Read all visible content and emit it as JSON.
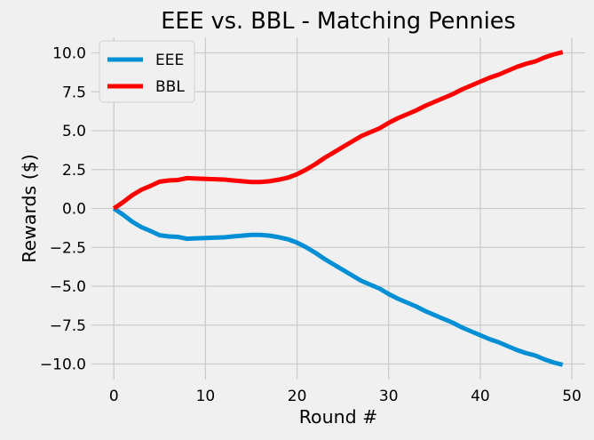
{
  "chart_data": {
    "type": "line",
    "title": "EEE vs. BBL - Matching Pennies",
    "xlabel": "Round #",
    "ylabel": "Rewards ($)",
    "xlim": [
      -2.45,
      51.45
    ],
    "ylim": [
      -11,
      11
    ],
    "xticks": [
      0,
      10,
      20,
      30,
      40,
      50
    ],
    "xtick_labels": [
      "0",
      "10",
      "20",
      "30",
      "40",
      "50"
    ],
    "yticks": [
      -10,
      -7.5,
      -5,
      -2.5,
      0,
      2.5,
      5,
      7.5,
      10
    ],
    "ytick_labels": [
      "−10.0",
      "−7.5",
      "−5.0",
      "−2.5",
      "0.0",
      "2.5",
      "5.0",
      "7.5",
      "10.0"
    ],
    "grid": true,
    "legend_position": "upper-left",
    "x": [
      0,
      1,
      2,
      3,
      4,
      5,
      6,
      7,
      8,
      9,
      10,
      11,
      12,
      13,
      14,
      15,
      16,
      17,
      18,
      19,
      20,
      21,
      22,
      23,
      24,
      25,
      26,
      27,
      28,
      29,
      30,
      31,
      32,
      33,
      34,
      35,
      36,
      37,
      38,
      39,
      40,
      41,
      42,
      43,
      44,
      45,
      46,
      47,
      48,
      49
    ],
    "series": [
      {
        "name": "EEE",
        "color": "#008fd5",
        "values": [
          0.0,
          -0.4,
          -0.85,
          -1.2,
          -1.45,
          -1.72,
          -1.8,
          -1.83,
          -1.95,
          -1.92,
          -1.9,
          -1.88,
          -1.86,
          -1.8,
          -1.75,
          -1.7,
          -1.7,
          -1.75,
          -1.85,
          -1.98,
          -2.2,
          -2.5,
          -2.85,
          -3.25,
          -3.6,
          -3.95,
          -4.3,
          -4.65,
          -4.9,
          -5.15,
          -5.5,
          -5.8,
          -6.05,
          -6.3,
          -6.6,
          -6.85,
          -7.1,
          -7.35,
          -7.65,
          -7.9,
          -8.15,
          -8.4,
          -8.6,
          -8.85,
          -9.1,
          -9.3,
          -9.45,
          -9.7,
          -9.9,
          -10.05
        ]
      },
      {
        "name": "BBL",
        "color": "#ff0000",
        "values": [
          0.0,
          0.4,
          0.85,
          1.2,
          1.45,
          1.72,
          1.8,
          1.83,
          1.95,
          1.92,
          1.9,
          1.88,
          1.86,
          1.8,
          1.75,
          1.7,
          1.7,
          1.75,
          1.85,
          1.98,
          2.2,
          2.5,
          2.85,
          3.25,
          3.6,
          3.95,
          4.3,
          4.65,
          4.9,
          5.15,
          5.5,
          5.8,
          6.05,
          6.3,
          6.6,
          6.85,
          7.1,
          7.35,
          7.65,
          7.9,
          8.15,
          8.4,
          8.6,
          8.85,
          9.1,
          9.3,
          9.45,
          9.7,
          9.9,
          10.05
        ]
      }
    ]
  }
}
